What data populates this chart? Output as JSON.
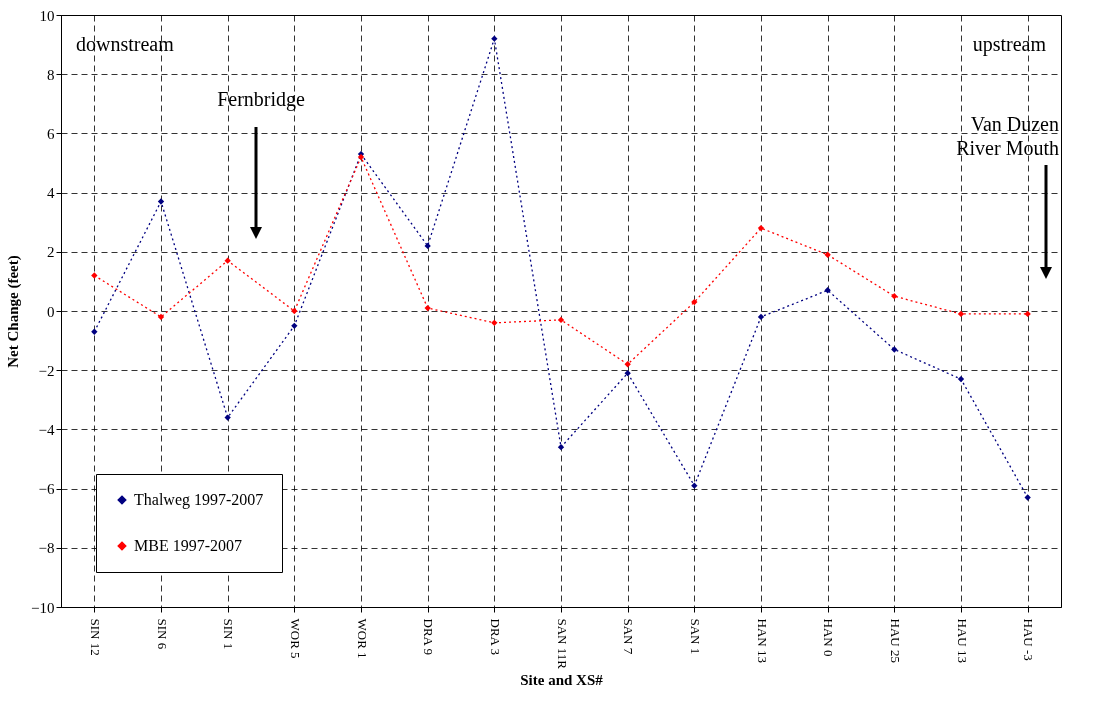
{
  "chart_data": {
    "type": "line",
    "xlabel": "Site and XS#",
    "ylabel": "Net Change (feet)",
    "categories": [
      "SIN 12",
      "SIN 6",
      "SIN 1",
      "WOR 5",
      "WOR 1",
      "DRA 9",
      "DRA 3",
      "SAN 11R",
      "SAN 7",
      "SAN 1",
      "HAN 13",
      "HAN 0",
      "HAU 25",
      "HAU 13",
      "HAU -3"
    ],
    "series": [
      {
        "name": "Thalweg 1997-2007",
        "color": "#000080",
        "values": [
          -0.7,
          3.7,
          -3.6,
          -0.5,
          5.3,
          2.2,
          9.2,
          -4.6,
          -2.1,
          -5.9,
          -0.2,
          0.7,
          -1.3,
          -2.3,
          -6.3
        ]
      },
      {
        "name": "MBE 1997-2007",
        "color": "#ff0000",
        "values": [
          1.2,
          -0.2,
          1.7,
          0.0,
          5.2,
          0.1,
          -0.4,
          -0.3,
          -1.8,
          0.3,
          2.8,
          1.9,
          0.5,
          -0.1,
          -0.1
        ]
      }
    ],
    "ylim": [
      -10,
      10
    ],
    "yticks": [
      -10,
      -8,
      -6,
      -4,
      -2,
      0,
      2,
      4,
      6,
      8,
      10
    ],
    "grid": true,
    "legend": "bottom left",
    "marker": "diamond",
    "line_style": "dotted",
    "annotations": [
      "downstream",
      "upstream",
      "Fernbridge",
      "Van Duzen\nRiver Mouth"
    ]
  }
}
